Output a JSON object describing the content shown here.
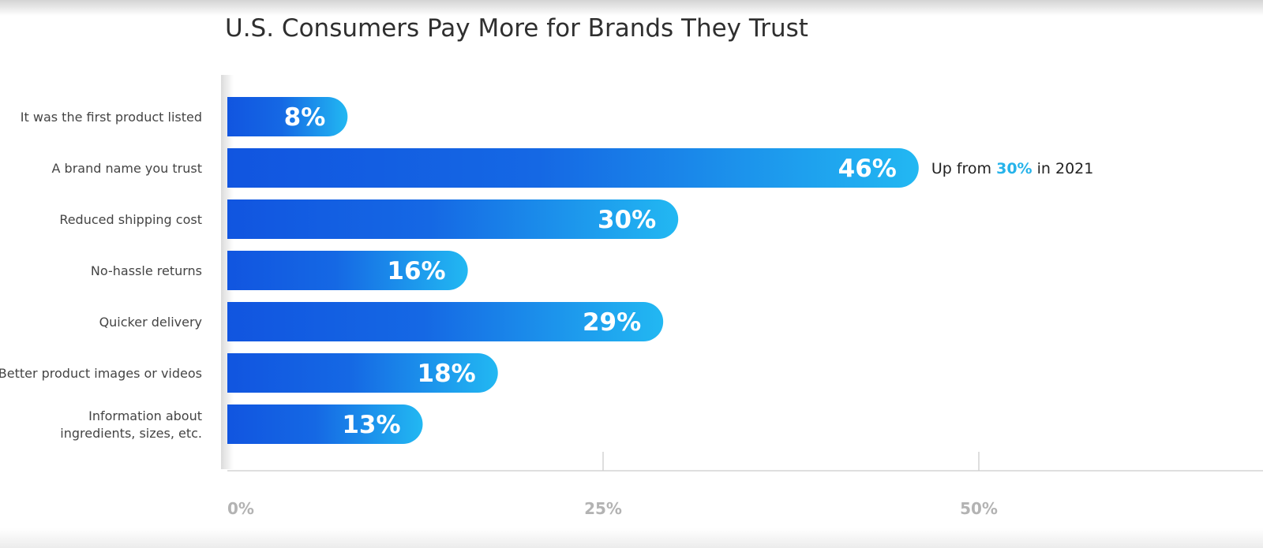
{
  "chart_data": {
    "type": "bar",
    "orientation": "horizontal",
    "title": "U.S. Consumers Pay More for Brands They Trust",
    "categories": [
      "It was the first product listed",
      "A brand name you trust",
      "Reduced shipping cost",
      "No-hassle returns",
      "Quicker delivery",
      "Better product images or videos",
      "Information about ingredients, sizes, etc."
    ],
    "values": [
      8,
      46,
      30,
      16,
      29,
      18,
      13
    ],
    "value_labels": [
      "8%",
      "46%",
      "30%",
      "16%",
      "29%",
      "18%",
      "13%"
    ],
    "xlim": [
      0,
      50
    ],
    "xticks": [
      0,
      25,
      50
    ],
    "xtick_labels": [
      "0%",
      "25%",
      "50%"
    ],
    "grid": false,
    "colors": {
      "bar_start": "#1155e0",
      "bar_end": "#22b8f2",
      "highlight": "#26b3ea"
    },
    "annotation": {
      "category_index": 1,
      "prefix": "Up from ",
      "highlight": "30%",
      "suffix": " in 2021"
    }
  }
}
